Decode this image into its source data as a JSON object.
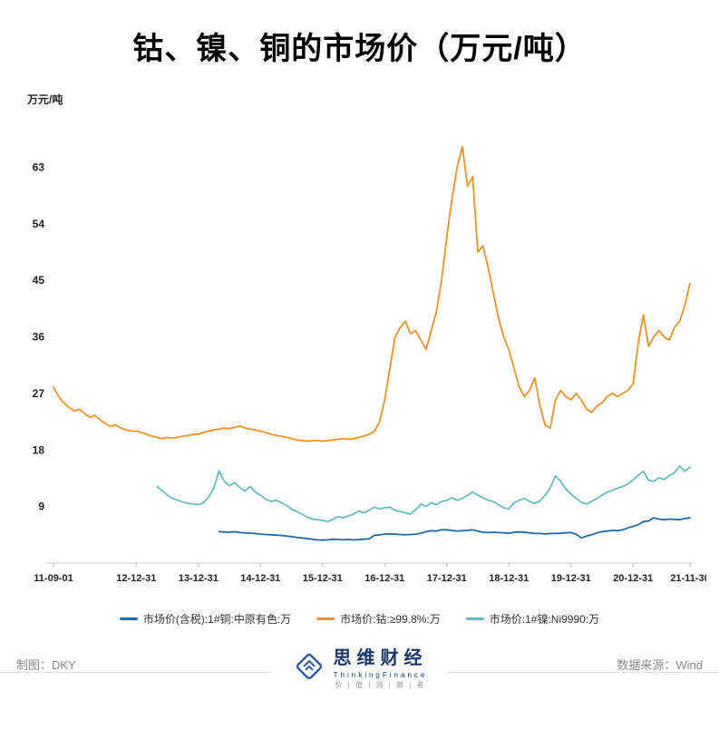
{
  "page": {
    "title": "钴、镍、铜的市场价（万元/吨）",
    "footer": {
      "credit_left": "制图：DKY",
      "credit_right": "数据来源：Wind"
    },
    "brand": {
      "name": "思维财经",
      "latin": "ThinkingFinance",
      "tagline": "价 | 值 | 洞 | 察 | 者"
    }
  },
  "chart_data": {
    "type": "line",
    "title": "钴、镍、铜的市场价（万元/吨）",
    "xlabel": "",
    "ylabel": "万元/吨",
    "ylim": [
      0,
      70
    ],
    "yticks": [
      9,
      18,
      27,
      36,
      45,
      54,
      63
    ],
    "grid": false,
    "legend_position": "bottom",
    "x_unit": "months since 2011-09-01",
    "xtick_positions": [
      0,
      16,
      28,
      40,
      52,
      64,
      76,
      88,
      100,
      112,
      123
    ],
    "xtick_labels": [
      "11-09-01",
      "12-12-31",
      "13-12-31",
      "14-12-31",
      "15-12-31",
      "16-12-31",
      "17-12-31",
      "18-12-31",
      "19-12-31",
      "20-12-31",
      "21-11-30"
    ],
    "series": [
      {
        "name": "市场价(含税):1#铜:中原有色:万",
        "color": "#1B6CA8",
        "start_month": 32,
        "values": [
          5,
          4.95,
          4.9,
          5,
          4.85,
          4.8,
          4.75,
          4.7,
          4.6,
          4.55,
          4.5,
          4.45,
          4.4,
          4.3,
          4.2,
          4.1,
          4,
          3.9,
          3.8,
          3.7,
          3.65,
          3.7,
          3.8,
          3.75,
          3.7,
          3.75,
          3.7,
          3.75,
          3.8,
          3.85,
          4.4,
          4.5,
          4.6,
          4.65,
          4.6,
          4.55,
          4.5,
          4.55,
          4.6,
          4.75,
          5,
          5.15,
          5.1,
          5.3,
          5.3,
          5.2,
          5.1,
          5.15,
          5.2,
          5.3,
          5.1,
          4.9,
          4.85,
          4.9,
          4.85,
          4.8,
          4.75,
          4.9,
          4.95,
          4.9,
          4.8,
          4.7,
          4.7,
          4.65,
          4.7,
          4.7,
          4.75,
          4.8,
          4.85,
          4.6,
          4,
          4.3,
          4.5,
          4.8,
          5,
          5.1,
          5.2,
          5.15,
          5.3,
          5.6,
          5.85,
          6.1,
          6.6,
          6.7,
          7.2,
          7,
          6.9,
          7,
          6.95,
          6.9,
          7.1,
          7.2
        ]
      },
      {
        "name": "市场价:钴:≥99.8%:万",
        "color": "#F5921F",
        "start_month": 0,
        "values": [
          28,
          26.5,
          25.5,
          24.8,
          24.2,
          24.5,
          23.8,
          23.2,
          23.5,
          22.8,
          22.2,
          21.8,
          22,
          21.5,
          21.2,
          21,
          21,
          20.8,
          20.5,
          20.2,
          20,
          19.8,
          20,
          19.9,
          20,
          20.2,
          20.3,
          20.5,
          20.5,
          20.8,
          21,
          21.2,
          21.3,
          21.5,
          21.4,
          21.6,
          21.8,
          21.5,
          21.3,
          21.2,
          21,
          20.8,
          20.5,
          20.3,
          20.2,
          20,
          19.8,
          19.6,
          19.5,
          19.4,
          19.5,
          19.5,
          19.4,
          19.5,
          19.6,
          19.7,
          19.8,
          19.7,
          19.8,
          20,
          20.2,
          20.5,
          21,
          22.5,
          26,
          31,
          36,
          37.5,
          38.5,
          36.5,
          37,
          35.5,
          34,
          37,
          40,
          45,
          52,
          58,
          63,
          66.3,
          60,
          61.5,
          49.5,
          50.5,
          47,
          43,
          39,
          36,
          34,
          31,
          28,
          26.5,
          27.5,
          29.5,
          25,
          22,
          21.5,
          26,
          27.5,
          26.5,
          26,
          27,
          26,
          24.5,
          24,
          25,
          25.5,
          26.5,
          27,
          26.5,
          27,
          27.5,
          28.5,
          35,
          39.5,
          34.5,
          36,
          37,
          36,
          35.5,
          37.5,
          38.5,
          41,
          44.5
        ]
      },
      {
        "name": "市场价:1#镍:Ni9990:万",
        "color": "#63BFBD",
        "start_month": 20,
        "values": [
          12.2,
          11.5,
          10.8,
          10.3,
          10,
          9.7,
          9.5,
          9.4,
          9.3,
          9.6,
          10.5,
          12,
          14.7,
          13,
          12.3,
          12.8,
          12,
          11.5,
          12.2,
          11.3,
          10.8,
          10.2,
          9.8,
          10,
          9.6,
          9.2,
          8.6,
          8.2,
          7.8,
          7.3,
          7,
          6.9,
          6.8,
          6.6,
          7,
          7.4,
          7.2,
          7.5,
          7.8,
          8.3,
          8,
          8.4,
          8.9,
          8.6,
          8.8,
          8.9,
          8.4,
          8.2,
          8,
          7.8,
          8.5,
          9.4,
          9,
          9.6,
          9.3,
          9.8,
          10,
          10.4,
          10,
          10.3,
          10.8,
          11.3,
          10.8,
          10.4,
          10,
          9.8,
          9.3,
          8.8,
          8.6,
          9.6,
          10,
          10.3,
          9.8,
          9.5,
          9.9,
          10.8,
          12,
          13.9,
          13,
          11.8,
          11,
          10.3,
          9.7,
          9.4,
          9.8,
          10.3,
          10.8,
          11.3,
          11.6,
          11.9,
          12.2,
          12.6,
          13.2,
          14,
          14.6,
          13.2,
          13,
          13.6,
          13.3,
          13.9,
          14.4,
          15.4,
          14.6,
          15.3
        ]
      }
    ]
  }
}
